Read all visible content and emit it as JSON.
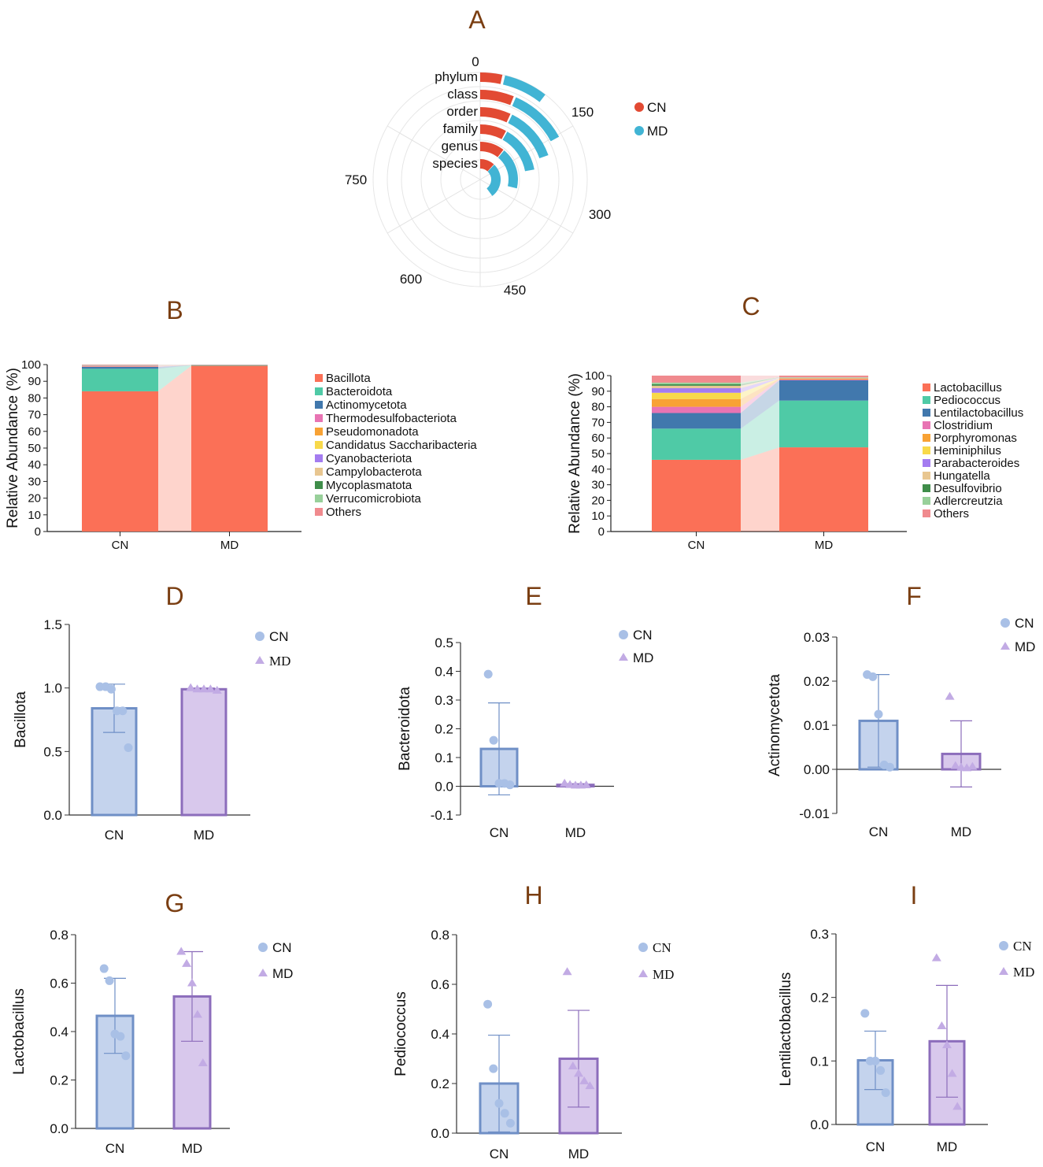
{
  "figure": {
    "colors": {
      "cn_bar": "#c4d3ed",
      "cn_edge": "#6f8fc6",
      "md_bar": "#d8c8ec",
      "md_edge": "#8c6dbb",
      "cn_radial": "#e24a33",
      "md_radial": "#41b4d4",
      "letter": "#7a3e12"
    }
  },
  "chart_data": [
    {
      "id": "A",
      "letter": "A",
      "type": "radial_bar",
      "categories": [
        "phylum",
        "class",
        "order",
        "family",
        "genus",
        "species"
      ],
      "series": [
        {
          "name": "CN",
          "values": [
            30,
            55,
            62,
            70,
            95,
            105
          ]
        },
        {
          "name": "MD",
          "values": [
            60,
            95,
            110,
            125,
            160,
            250
          ]
        }
      ],
      "radial_ticks": [
        "0",
        "150",
        "300",
        "450",
        "600",
        "750"
      ],
      "range": [
        0,
        900
      ],
      "legend": [
        "CN",
        "MD"
      ]
    },
    {
      "id": "B",
      "letter": "B",
      "type": "stacked_bar",
      "categories": [
        "CN",
        "MD"
      ],
      "ylabel": "Relative Abundance (%)",
      "yticks": [
        "0",
        "10",
        "20",
        "30",
        "40",
        "50",
        "60",
        "70",
        "80",
        "90",
        "100"
      ],
      "ylim": [
        0,
        100
      ],
      "series": [
        {
          "name": "Bacillota",
          "color": "#fb7057",
          "values": [
            84,
            99.3
          ]
        },
        {
          "name": "Bacteroidota",
          "color": "#4fcaa6",
          "values": [
            13.5,
            0.3
          ]
        },
        {
          "name": "Actinomycetota",
          "color": "#4178ad",
          "values": [
            1.1,
            0.1
          ]
        },
        {
          "name": "Thermodesulfobacteriota",
          "color": "#e874b3",
          "values": [
            0.3,
            0.05
          ]
        },
        {
          "name": "Pseudomonadota",
          "color": "#f8a234",
          "values": [
            0.2,
            0.05
          ]
        },
        {
          "name": "Candidatus Saccharibacteria",
          "color": "#f8d94a",
          "values": [
            0.1,
            0.02
          ]
        },
        {
          "name": "Cyanobacteriota",
          "color": "#a47cf0",
          "values": [
            0.2,
            0.02
          ]
        },
        {
          "name": "Campylobacterota",
          "color": "#e8c690",
          "values": [
            0.1,
            0.02
          ]
        },
        {
          "name": "Mycoplasmatota",
          "color": "#3f8d4a",
          "values": [
            0.1,
            0.05
          ]
        },
        {
          "name": "Verrucomicrobiota",
          "color": "#98d09a",
          "values": [
            0.1,
            0.02
          ]
        },
        {
          "name": "Others",
          "color": "#f08a8e",
          "values": [
            0.3,
            0.07
          ]
        }
      ]
    },
    {
      "id": "C",
      "letter": "C",
      "type": "stacked_bar",
      "categories": [
        "CN",
        "MD"
      ],
      "ylabel": "Relative Abundance (%)",
      "yticks": [
        "0",
        "10",
        "20",
        "30",
        "40",
        "50",
        "60",
        "70",
        "80",
        "90",
        "100"
      ],
      "ylim": [
        0,
        100
      ],
      "series": [
        {
          "name": "Lactobacillus",
          "color": "#fb7057",
          "values": [
            46,
            54
          ]
        },
        {
          "name": "Pediococcus",
          "color": "#4fcaa6",
          "values": [
            20,
            30
          ]
        },
        {
          "name": "Lentilactobacillus",
          "color": "#4178ad",
          "values": [
            10,
            13
          ]
        },
        {
          "name": "Clostridium",
          "color": "#e874b3",
          "values": [
            4,
            0.5
          ]
        },
        {
          "name": "Porphyromonas",
          "color": "#f8a234",
          "values": [
            5,
            0.5
          ]
        },
        {
          "name": "Heminiphilus",
          "color": "#f8d94a",
          "values": [
            4,
            0.3
          ]
        },
        {
          "name": "Parabacteroides",
          "color": "#a47cf0",
          "values": [
            3,
            0.3
          ]
        },
        {
          "name": "Hungatella",
          "color": "#e8c690",
          "values": [
            1.5,
            0.2
          ]
        },
        {
          "name": "Desulfovibrio",
          "color": "#3f8d4a",
          "values": [
            1,
            0.1
          ]
        },
        {
          "name": "Adlercreutzia",
          "color": "#98d09a",
          "values": [
            1,
            0.1
          ]
        },
        {
          "name": "Others",
          "color": "#f08a8e",
          "values": [
            4.5,
            1
          ]
        }
      ]
    },
    {
      "id": "D",
      "letter": "D",
      "type": "bar",
      "ylabel": "Bacillota",
      "categories": [
        "CN",
        "MD"
      ],
      "ylim": [
        0,
        1.5
      ],
      "yticks": [
        0,
        0.5,
        1.0,
        1.5
      ],
      "yticklabels": [
        "0.0",
        "0.5",
        "1.0",
        "1.5"
      ],
      "means": [
        0.84,
        0.99
      ],
      "sd": [
        0.19,
        0.01
      ],
      "points": [
        [
          1.01,
          1.01,
          0.99,
          0.82,
          0.82,
          0.53
        ],
        [
          1.0,
          0.99,
          0.99,
          0.99,
          0.98
        ]
      ],
      "legend": [
        "CN",
        "MD"
      ],
      "legend_font": "serif-md"
    },
    {
      "id": "E",
      "letter": "E",
      "type": "bar",
      "ylabel": "Bacteroidota",
      "categories": [
        "CN",
        "MD"
      ],
      "ylim": [
        -0.1,
        0.5
      ],
      "yticks": [
        -0.1,
        0.0,
        0.1,
        0.2,
        0.3,
        0.4,
        0.5
      ],
      "yticklabels": [
        "-0.1",
        "0.0",
        "0.1",
        "0.2",
        "0.3",
        "0.4",
        "0.5"
      ],
      "means": [
        0.13,
        0.005
      ],
      "sd": [
        0.16,
        0.004
      ],
      "points": [
        [
          0.39,
          0.16,
          0.01,
          0.01,
          0.005
        ],
        [
          0.01,
          0.005,
          0.003,
          0.003,
          0.004
        ]
      ],
      "legend": [
        "CN",
        "MD"
      ],
      "legend_font": "sans"
    },
    {
      "id": "F",
      "letter": "F",
      "type": "bar",
      "ylabel": "Actinomycetota",
      "categories": [
        "CN",
        "MD"
      ],
      "ylim": [
        -0.01,
        0.03
      ],
      "yticks": [
        -0.01,
        0.0,
        0.01,
        0.02,
        0.03
      ],
      "yticklabels": [
        "-0.01",
        "0.00",
        "0.01",
        "0.02",
        "0.03"
      ],
      "means": [
        0.011,
        0.0035
      ],
      "sd": [
        0.0105,
        0.0075
      ],
      "points": [
        [
          0.0215,
          0.021,
          0.0125,
          0.001,
          0.0005
        ],
        [
          0.0165,
          0.0008,
          0.0004,
          0.0003,
          0.0006
        ]
      ],
      "legend": [
        "CN",
        "MD"
      ],
      "legend_font": "sans"
    },
    {
      "id": "G",
      "letter": "G",
      "type": "bar",
      "ylabel": "Lactobacillus",
      "categories": [
        "CN",
        "MD"
      ],
      "ylim": [
        0,
        0.8
      ],
      "yticks": [
        0,
        0.2,
        0.4,
        0.6,
        0.8
      ],
      "yticklabels": [
        "0.0",
        "0.2",
        "0.4",
        "0.6",
        "0.8"
      ],
      "means": [
        0.465,
        0.545
      ],
      "sd": [
        0.155,
        0.185
      ],
      "points": [
        [
          0.66,
          0.61,
          0.39,
          0.38,
          0.3
        ],
        [
          0.73,
          0.68,
          0.6,
          0.47,
          0.27
        ]
      ],
      "legend": [
        "CN",
        "MD"
      ],
      "legend_font": "sans"
    },
    {
      "id": "H",
      "letter": "H",
      "type": "bar",
      "ylabel": "Pediococcus",
      "categories": [
        "CN",
        "MD"
      ],
      "ylim": [
        0,
        0.8
      ],
      "yticks": [
        0,
        0.2,
        0.4,
        0.6,
        0.8
      ],
      "yticklabels": [
        "0.0",
        "0.2",
        "0.4",
        "0.6",
        "0.8"
      ],
      "means": [
        0.2,
        0.3
      ],
      "sd": [
        0.195,
        0.195
      ],
      "points": [
        [
          0.52,
          0.26,
          0.12,
          0.08,
          0.04
        ],
        [
          0.65,
          0.27,
          0.24,
          0.21,
          0.19
        ]
      ],
      "legend": [
        "CN",
        "MD"
      ],
      "legend_font": "serif"
    },
    {
      "id": "I",
      "letter": "I",
      "type": "bar",
      "ylabel": "Lentilactobacillus",
      "categories": [
        "CN",
        "MD"
      ],
      "ylim": [
        0,
        0.3
      ],
      "yticks": [
        0,
        0.1,
        0.2,
        0.3
      ],
      "yticklabels": [
        "0.0",
        "0.1",
        "0.2",
        "0.3"
      ],
      "means": [
        0.101,
        0.131
      ],
      "sd": [
        0.046,
        0.088
      ],
      "points": [
        [
          0.175,
          0.1,
          0.1,
          0.085,
          0.05
        ],
        [
          0.262,
          0.155,
          0.125,
          0.08,
          0.028
        ]
      ],
      "legend": [
        "CN",
        "MD"
      ],
      "legend_font": "serif"
    }
  ]
}
